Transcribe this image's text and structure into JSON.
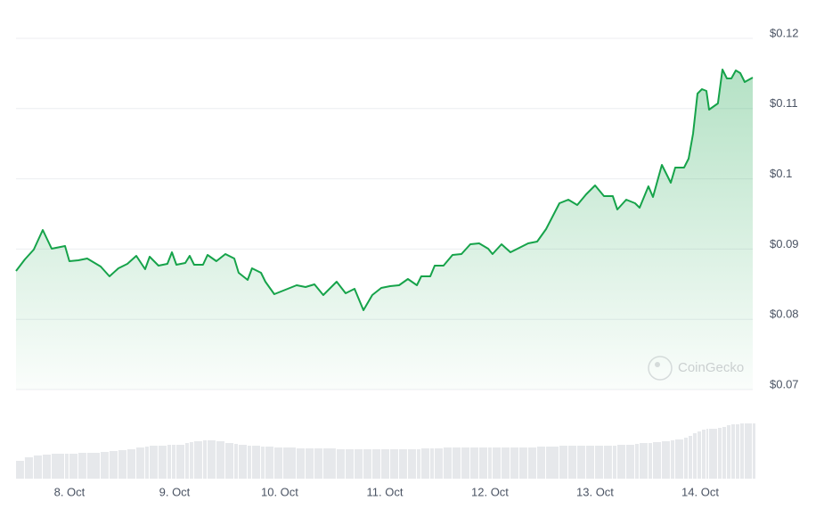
{
  "chart_data": {
    "type": "area",
    "x": [
      7.492,
      7.576,
      7.661,
      7.746,
      7.831,
      7.958,
      8.0,
      8.085,
      8.169,
      8.297,
      8.381,
      8.466,
      8.551,
      8.636,
      8.72,
      8.763,
      8.847,
      8.932,
      8.975,
      9.017,
      9.102,
      9.144,
      9.186,
      9.271,
      9.314,
      9.398,
      9.483,
      9.568,
      9.61,
      9.695,
      9.737,
      9.822,
      9.864,
      9.949,
      10.034,
      10.161,
      10.246,
      10.331,
      10.415,
      10.542,
      10.627,
      10.712,
      10.797,
      10.881,
      10.966,
      11.051,
      11.136,
      11.22,
      11.305,
      11.347,
      11.432,
      11.475,
      11.559,
      11.644,
      11.729,
      11.814,
      11.898,
      11.983,
      12.025,
      12.11,
      12.195,
      12.28,
      12.364,
      12.449,
      12.534,
      12.661,
      12.746,
      12.831,
      12.915,
      13.0,
      13.085,
      13.169,
      13.212,
      13.297,
      13.381,
      13.424,
      13.508,
      13.551,
      13.636,
      13.72,
      13.763,
      13.847,
      13.89,
      13.932,
      13.975,
      14.017,
      14.059,
      14.085,
      14.169,
      14.212,
      14.254,
      14.297,
      14.339,
      14.381,
      14.424,
      14.5
    ],
    "series": [
      {
        "color": "#16a34a",
        "values": [
          0.08688,
          0.08853,
          0.08992,
          0.09272,
          0.09005,
          0.09043,
          0.08827,
          0.0884,
          0.08866,
          0.08751,
          0.08612,
          0.08726,
          0.08789,
          0.08904,
          0.08713,
          0.08891,
          0.08764,
          0.08789,
          0.08954,
          0.08777,
          0.08802,
          0.08904,
          0.08777,
          0.08777,
          0.08916,
          0.08827,
          0.08929,
          0.08866,
          0.08663,
          0.08561,
          0.08726,
          0.08663,
          0.08536,
          0.08358,
          0.08409,
          0.08485,
          0.08459,
          0.08498,
          0.08345,
          0.08536,
          0.08371,
          0.08434,
          0.0813,
          0.08345,
          0.08447,
          0.08472,
          0.08485,
          0.08574,
          0.08485,
          0.08612,
          0.08612,
          0.08764,
          0.08764,
          0.08916,
          0.08929,
          0.09069,
          0.09081,
          0.09005,
          0.08929,
          0.09069,
          0.08954,
          0.09018,
          0.09081,
          0.09107,
          0.09284,
          0.09652,
          0.09703,
          0.09627,
          0.09779,
          0.09906,
          0.09754,
          0.09754,
          0.09564,
          0.09703,
          0.09652,
          0.09589,
          0.09893,
          0.09741,
          0.10198,
          0.09944,
          0.1016,
          0.1016,
          0.10287,
          0.10642,
          0.11213,
          0.11277,
          0.11251,
          0.10985,
          0.11074,
          0.11556,
          0.11429,
          0.11429,
          0.11543,
          0.11505,
          0.11378,
          0.11442
        ]
      }
    ],
    "volume": [
      20,
      24,
      26,
      27,
      28,
      28,
      28,
      29,
      29,
      30,
      31,
      32,
      33,
      35,
      36,
      37,
      37,
      38,
      38,
      38,
      40,
      41,
      42,
      43,
      43,
      42,
      40,
      39,
      38,
      37,
      37,
      36,
      36,
      35,
      35,
      34,
      34,
      34,
      34,
      33,
      33,
      33,
      33,
      33,
      33,
      33,
      33,
      33,
      33,
      34,
      34,
      34,
      35,
      35,
      35,
      35,
      35,
      35,
      35,
      35,
      35,
      35,
      35,
      36,
      36,
      37,
      37,
      37,
      37,
      37,
      37,
      37,
      38,
      38,
      39,
      40,
      40,
      41,
      42,
      43,
      44,
      46,
      48,
      51,
      53,
      55,
      56,
      56,
      57,
      58,
      60,
      61,
      61,
      62,
      62,
      62
    ],
    "xlim": [
      7.492,
      14.5
    ],
    "ylim": [
      0.07,
      0.12
    ],
    "xticks": [
      {
        "value": 8,
        "label": "8. Oct"
      },
      {
        "value": 9,
        "label": "9. Oct"
      },
      {
        "value": 10,
        "label": "10. Oct"
      },
      {
        "value": 11,
        "label": "11. Oct"
      },
      {
        "value": 12,
        "label": "12. Oct"
      },
      {
        "value": 13,
        "label": "13. Oct"
      },
      {
        "value": 14,
        "label": "14. Oct"
      }
    ],
    "yticks": [
      {
        "value": 0.07,
        "label": "$0.07"
      },
      {
        "value": 0.08,
        "label": "$0.08"
      },
      {
        "value": 0.09,
        "label": "$0.09"
      },
      {
        "value": 0.1,
        "label": "$0.1"
      },
      {
        "value": 0.11,
        "label": "$0.11"
      },
      {
        "value": 0.12,
        "label": "$0.12"
      }
    ],
    "grid": true,
    "watermark": "CoinGecko"
  }
}
